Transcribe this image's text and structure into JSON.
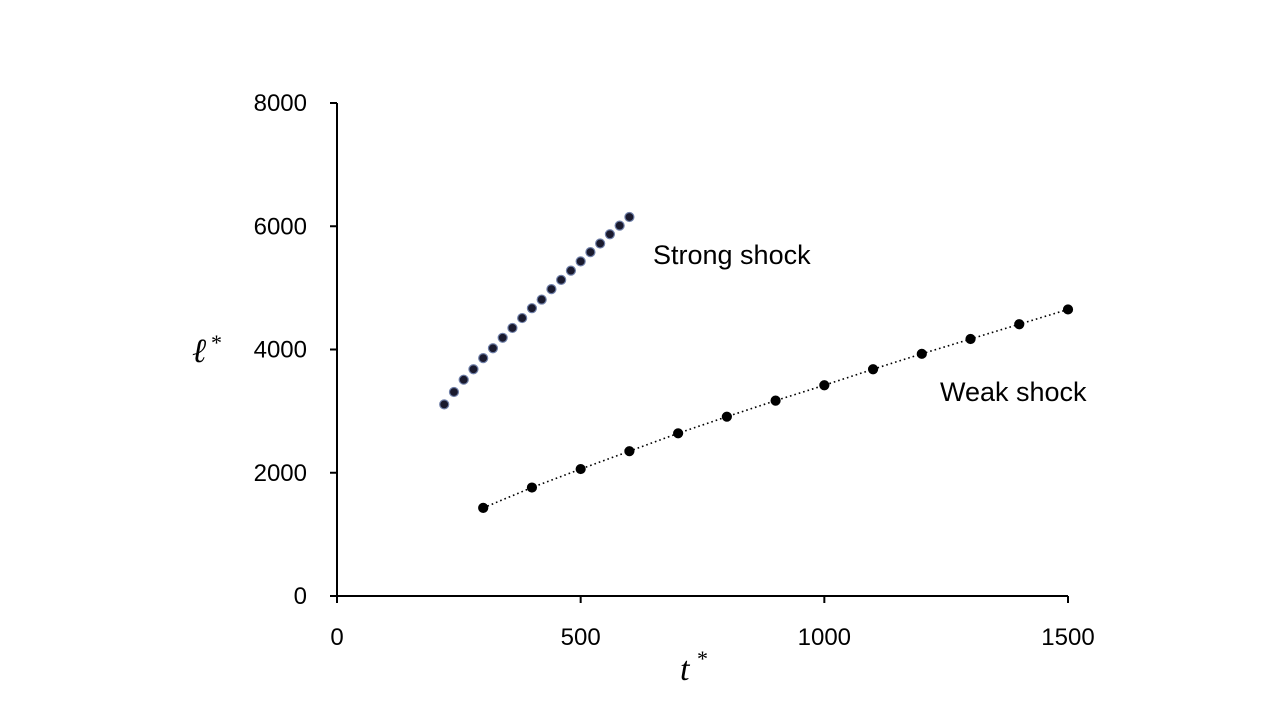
{
  "chart_data": {
    "type": "scatter",
    "title": "",
    "xlabel": "t",
    "ylabel": "ℓ",
    "label_superscript": "*",
    "xlim": [
      0,
      1500
    ],
    "ylim": [
      0,
      8000
    ],
    "xticks": [
      "0",
      "500",
      "1000",
      "1500"
    ],
    "yticks": [
      "0",
      "2000",
      "4000",
      "6000",
      "8000"
    ],
    "grid": false,
    "legend": "none",
    "series": [
      {
        "name": "Strong shock",
        "color": "#1a1a2e",
        "marker_edge": "#6f7fa8",
        "line": "none",
        "x": [
          220,
          240,
          260,
          280,
          300,
          320,
          340,
          360,
          380,
          400,
          420,
          440,
          460,
          480,
          500,
          520,
          540,
          560,
          580,
          600
        ],
        "y": [
          3110,
          3310,
          3510,
          3680,
          3860,
          4020,
          4190,
          4350,
          4510,
          4670,
          4810,
          4980,
          5130,
          5280,
          5430,
          5580,
          5720,
          5870,
          6010,
          6150
        ]
      },
      {
        "name": "Weak shock",
        "color": "#000000",
        "marker_edge": "#000000",
        "line": "dotted",
        "x": [
          300,
          400,
          500,
          600,
          700,
          800,
          900,
          1000,
          1100,
          1200,
          1300,
          1400,
          1500
        ],
        "y": [
          1430,
          1760,
          2060,
          2350,
          2640,
          2910,
          3170,
          3420,
          3680,
          3930,
          4170,
          4410,
          4650
        ]
      }
    ]
  }
}
